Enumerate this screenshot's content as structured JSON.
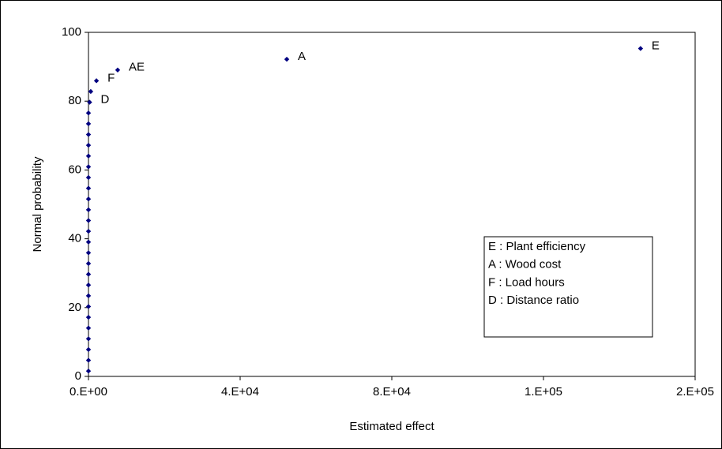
{
  "chart_data": {
    "type": "scatter",
    "xlabel": "Estimated effect",
    "ylabel": "Normal probability",
    "color": "#000080",
    "x": [
      0,
      0,
      0,
      0,
      0,
      0,
      0,
      0,
      0,
      0,
      0,
      0,
      0,
      0,
      0,
      0,
      0,
      0,
      0,
      0,
      0,
      0,
      0,
      0,
      0,
      300,
      600,
      2100,
      7700,
      52300,
      145600
    ],
    "y": [
      1.5625,
      4.6875,
      7.8125,
      10.9375,
      14.0625,
      17.1875,
      20.3125,
      23.4375,
      26.5625,
      29.6875,
      32.8125,
      35.9375,
      39.0625,
      42.1875,
      45.3125,
      48.4375,
      51.5625,
      54.6875,
      57.8125,
      60.9375,
      64.0625,
      67.1875,
      70.3125,
      73.4375,
      76.5625,
      79.6875,
      82.8125,
      85.9375,
      89.0625,
      92.1875,
      95.3125
    ],
    "point_labels": [
      null,
      null,
      null,
      null,
      null,
      null,
      null,
      null,
      null,
      null,
      null,
      null,
      null,
      null,
      null,
      null,
      null,
      null,
      null,
      null,
      null,
      null,
      null,
      null,
      null,
      "D",
      null,
      "F",
      "AE",
      "A",
      "E"
    ],
    "xlim": [
      0,
      160000
    ],
    "xticks": [
      {
        "value": 0,
        "label": "0.E+00"
      },
      {
        "value": 40000,
        "label": "4.E+04"
      },
      {
        "value": 80000,
        "label": "8.E+04"
      },
      {
        "value": 120000,
        "label": "1.E+05"
      },
      {
        "value": 160000,
        "label": "2.E+05"
      }
    ],
    "ylim": [
      0,
      100
    ],
    "yticks": [
      0,
      20,
      40,
      60,
      80,
      100
    ],
    "notes": [
      "E : Plant efficiency",
      "A : Wood cost",
      "F : Load hours",
      "D : Distance ratio"
    ]
  }
}
